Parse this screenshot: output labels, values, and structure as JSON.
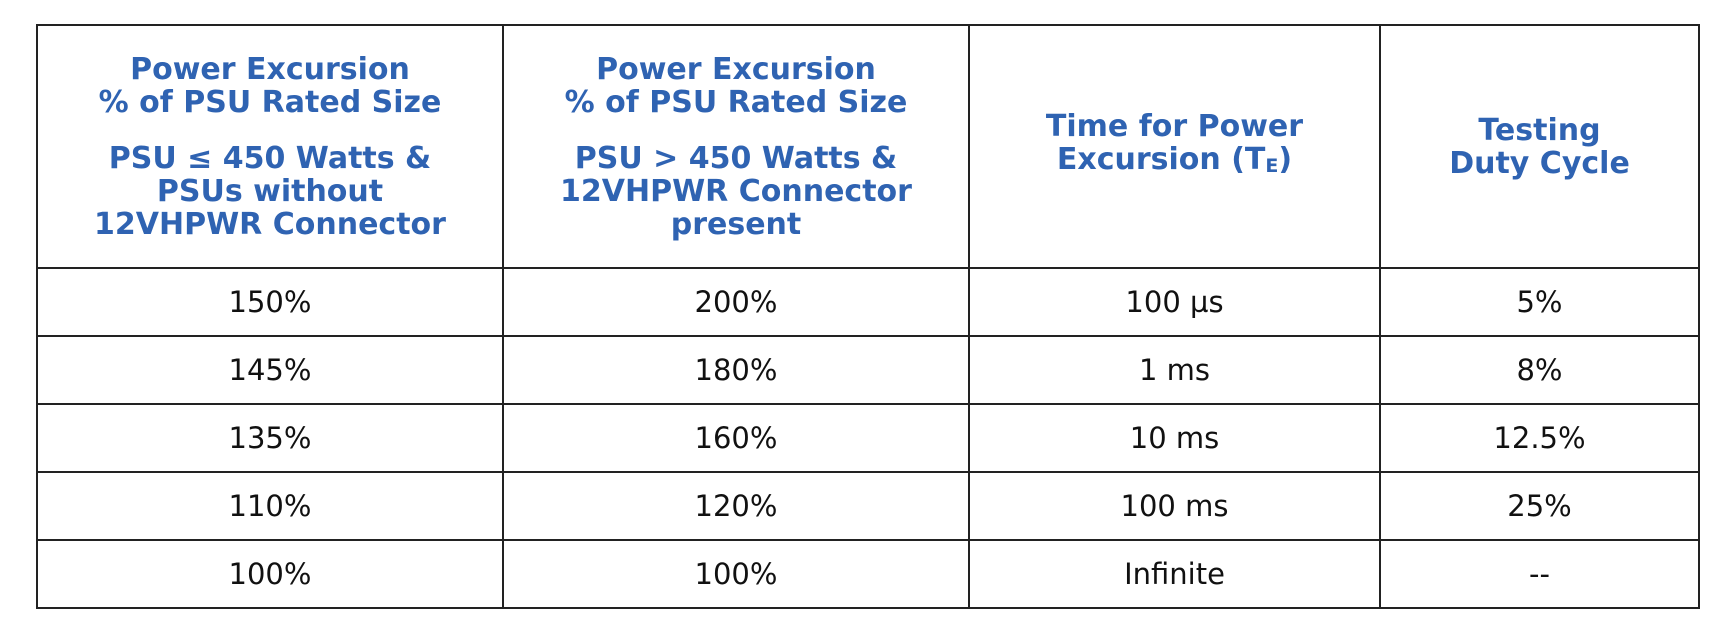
{
  "colors": {
    "header_text": "#2f63b2",
    "border": "#222222",
    "cell_text": "#111111",
    "background": "#ffffff"
  },
  "table": {
    "headers": [
      {
        "line1": "Power Excursion",
        "line2": "% of PSU Rated Size",
        "line3": "PSU ≤ 450 Watts &",
        "line4": "PSUs without",
        "line5": "12VHPWR Connector"
      },
      {
        "line1": "Power Excursion",
        "line2": "% of PSU Rated Size",
        "line3": "PSU > 450 Watts &",
        "line4": "12VHPWR Connector",
        "line5": "present"
      },
      {
        "line1": "Time for Power",
        "line2": "Excursion (T",
        "sub": "E",
        "line2_end": ")"
      },
      {
        "line1": "Testing",
        "line2": "Duty Cycle"
      }
    ],
    "rows": [
      [
        "150%",
        "200%",
        "100 µs",
        "5%"
      ],
      [
        "145%",
        "180%",
        "1 ms",
        "8%"
      ],
      [
        "135%",
        "160%",
        "10 ms",
        "12.5%"
      ],
      [
        "110%",
        "120%",
        "100 ms",
        "25%"
      ],
      [
        "100%",
        "100%",
        "Infinite",
        "--"
      ]
    ]
  }
}
